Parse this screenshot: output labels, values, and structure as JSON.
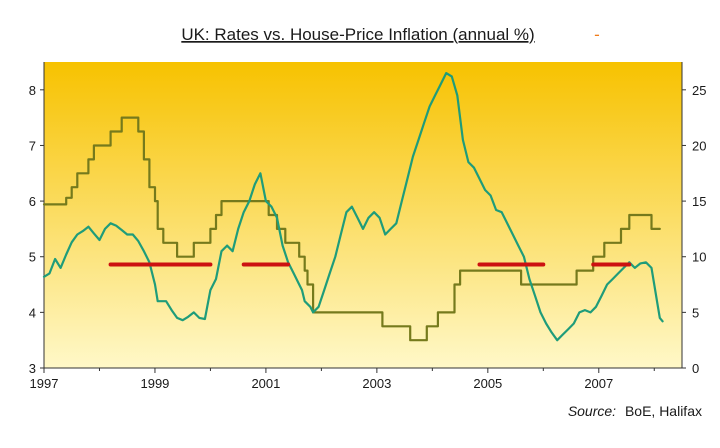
{
  "chart_data": {
    "type": "line",
    "title": "UK: Rates vs. House-Price Inflation (annual %)",
    "title_marker": "-",
    "source_label": "Source:",
    "source_text": "BoE, Halifax",
    "x_axis": {
      "min": 1997,
      "max": 2008.5,
      "tick_labels": [
        "1997",
        "1999",
        "2001",
        "2003",
        "2005",
        "2007"
      ]
    },
    "y_left": {
      "min": 3,
      "max": 8.5,
      "tick_labels": [
        "3",
        "4",
        "5",
        "6",
        "7",
        "8"
      ]
    },
    "y_right": {
      "min": 0,
      "max": 27.5,
      "tick_labels": [
        "0",
        "5",
        "10",
        "15",
        "20",
        "25"
      ]
    },
    "grid": false,
    "legend": "none",
    "colors": {
      "bank_rate": "#757a1c",
      "house_price_inflation": "#1f9c7a",
      "red_markers": "#cc1111",
      "background_top": "#f7c200",
      "background_bottom": "#fff8c8"
    },
    "series": [
      {
        "axis": "left",
        "step": true,
        "points": [
          [
            1997.0,
            5.94
          ],
          [
            1997.4,
            6.06
          ],
          [
            1997.5,
            6.25
          ],
          [
            1997.6,
            6.5
          ],
          [
            1997.8,
            6.75
          ],
          [
            1997.9,
            7.0
          ],
          [
            1998.2,
            7.25
          ],
          [
            1998.4,
            7.5
          ],
          [
            1998.7,
            7.25
          ],
          [
            1998.8,
            6.75
          ],
          [
            1998.9,
            6.25
          ],
          [
            1999.0,
            6.0
          ],
          [
            1999.05,
            5.5
          ],
          [
            1999.15,
            5.25
          ],
          [
            1999.4,
            5.0
          ],
          [
            1999.7,
            5.25
          ],
          [
            2000.0,
            5.5
          ],
          [
            2000.1,
            5.75
          ],
          [
            2000.2,
            6.0
          ],
          [
            2001.05,
            5.75
          ],
          [
            2001.2,
            5.5
          ],
          [
            2001.35,
            5.25
          ],
          [
            2001.6,
            5.0
          ],
          [
            2001.7,
            4.75
          ],
          [
            2001.75,
            4.5
          ],
          [
            2001.85,
            4.0
          ],
          [
            2003.1,
            3.75
          ],
          [
            2003.6,
            3.5
          ],
          [
            2003.9,
            3.75
          ],
          [
            2004.1,
            4.0
          ],
          [
            2004.4,
            4.5
          ],
          [
            2004.5,
            4.75
          ],
          [
            2005.6,
            4.5
          ],
          [
            2006.6,
            4.75
          ],
          [
            2006.9,
            5.0
          ],
          [
            2007.1,
            5.25
          ],
          [
            2007.4,
            5.5
          ],
          [
            2007.55,
            5.75
          ],
          [
            2007.95,
            5.5
          ],
          [
            2008.1,
            5.5
          ]
        ]
      },
      {
        "axis": "right",
        "step": false,
        "points": [
          [
            1997.0,
            8.2
          ],
          [
            1997.1,
            8.5
          ],
          [
            1997.2,
            9.8
          ],
          [
            1997.3,
            9.0
          ],
          [
            1997.4,
            10.2
          ],
          [
            1997.5,
            11.3
          ],
          [
            1997.6,
            12.0
          ],
          [
            1997.7,
            12.3
          ],
          [
            1997.8,
            12.7
          ],
          [
            1997.9,
            12.1
          ],
          [
            1998.0,
            11.5
          ],
          [
            1998.1,
            12.5
          ],
          [
            1998.2,
            13.0
          ],
          [
            1998.3,
            12.8
          ],
          [
            1998.4,
            12.4
          ],
          [
            1998.5,
            12.0
          ],
          [
            1998.6,
            12.0
          ],
          [
            1998.7,
            11.4
          ],
          [
            1998.8,
            10.5
          ],
          [
            1998.9,
            9.5
          ],
          [
            1999.0,
            7.5
          ],
          [
            1999.05,
            6.0
          ],
          [
            1999.2,
            6.0
          ],
          [
            1999.3,
            5.2
          ],
          [
            1999.4,
            4.5
          ],
          [
            1999.5,
            4.3
          ],
          [
            1999.6,
            4.6
          ],
          [
            1999.7,
            5.0
          ],
          [
            1999.8,
            4.5
          ],
          [
            1999.9,
            4.4
          ],
          [
            2000.0,
            7.0
          ],
          [
            2000.1,
            8.0
          ],
          [
            2000.2,
            10.5
          ],
          [
            2000.3,
            11.0
          ],
          [
            2000.4,
            10.5
          ],
          [
            2000.5,
            12.5
          ],
          [
            2000.6,
            14.0
          ],
          [
            2000.7,
            15.0
          ],
          [
            2000.8,
            16.5
          ],
          [
            2000.9,
            17.5
          ],
          [
            2001.0,
            15.0
          ],
          [
            2001.1,
            14.5
          ],
          [
            2001.2,
            13.5
          ],
          [
            2001.3,
            11.0
          ],
          [
            2001.4,
            9.5
          ],
          [
            2001.5,
            8.5
          ],
          [
            2001.6,
            7.5
          ],
          [
            2001.65,
            7.0
          ],
          [
            2001.7,
            6.0
          ],
          [
            2001.8,
            5.5
          ],
          [
            2001.85,
            5.0
          ],
          [
            2001.95,
            5.5
          ],
          [
            2002.05,
            7.0
          ],
          [
            2002.15,
            8.5
          ],
          [
            2002.25,
            10.0
          ],
          [
            2002.35,
            12.0
          ],
          [
            2002.45,
            14.0
          ],
          [
            2002.55,
            14.5
          ],
          [
            2002.65,
            13.5
          ],
          [
            2002.75,
            12.5
          ],
          [
            2002.85,
            13.5
          ],
          [
            2002.95,
            14.0
          ],
          [
            2003.05,
            13.5
          ],
          [
            2003.15,
            12.0
          ],
          [
            2003.25,
            12.5
          ],
          [
            2003.35,
            13.0
          ],
          [
            2003.45,
            15.0
          ],
          [
            2003.55,
            17.0
          ],
          [
            2003.65,
            19.0
          ],
          [
            2003.75,
            20.5
          ],
          [
            2003.85,
            22.0
          ],
          [
            2003.95,
            23.5
          ],
          [
            2004.05,
            24.5
          ],
          [
            2004.15,
            25.5
          ],
          [
            2004.25,
            26.5
          ],
          [
            2004.35,
            26.2
          ],
          [
            2004.45,
            24.5
          ],
          [
            2004.55,
            20.5
          ],
          [
            2004.65,
            18.5
          ],
          [
            2004.75,
            18.0
          ],
          [
            2004.85,
            17.0
          ],
          [
            2004.95,
            16.0
          ],
          [
            2005.05,
            15.5
          ],
          [
            2005.15,
            14.2
          ],
          [
            2005.25,
            14.0
          ],
          [
            2005.35,
            13.0
          ],
          [
            2005.45,
            12.0
          ],
          [
            2005.55,
            11.0
          ],
          [
            2005.65,
            10.0
          ],
          [
            2005.75,
            8.0
          ],
          [
            2005.85,
            6.5
          ],
          [
            2005.95,
            5.0
          ],
          [
            2006.05,
            4.0
          ],
          [
            2006.15,
            3.2
          ],
          [
            2006.25,
            2.5
          ],
          [
            2006.35,
            3.0
          ],
          [
            2006.45,
            3.5
          ],
          [
            2006.55,
            4.0
          ],
          [
            2006.65,
            5.0
          ],
          [
            2006.75,
            5.2
          ],
          [
            2006.85,
            5.0
          ],
          [
            2006.95,
            5.5
          ],
          [
            2007.05,
            6.5
          ],
          [
            2007.15,
            7.5
          ],
          [
            2007.25,
            8.0
          ],
          [
            2007.35,
            8.5
          ],
          [
            2007.45,
            9.0
          ],
          [
            2007.55,
            9.5
          ],
          [
            2007.65,
            9.0
          ],
          [
            2007.75,
            9.4
          ],
          [
            2007.85,
            9.5
          ],
          [
            2007.95,
            9.0
          ],
          [
            2008.05,
            6.0
          ],
          [
            2008.1,
            4.5
          ],
          [
            2008.15,
            4.2
          ]
        ]
      }
    ],
    "red_marker_segments": [
      {
        "x_from": 1998.2,
        "x_to": 2000.0,
        "y_right": 9.3
      },
      {
        "x_from": 2000.6,
        "x_to": 2001.4,
        "y_right": 9.3
      },
      {
        "x_from": 2004.85,
        "x_to": 2006.0,
        "y_right": 9.3
      },
      {
        "x_from": 2006.9,
        "x_to": 2007.55,
        "y_right": 9.3
      }
    ]
  }
}
